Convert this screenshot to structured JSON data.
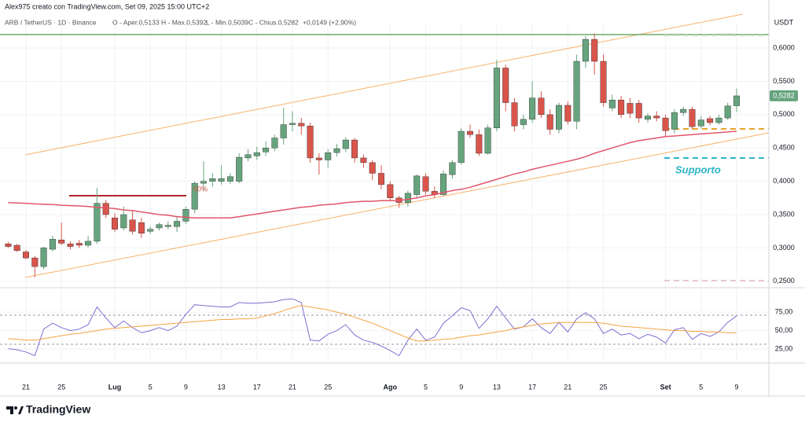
{
  "header": {
    "credit": "Alex975 creato con TradingView.com, Set 09, 2025 15:00 UTC+2",
    "symbol": "ARB / TetherUS · 1D · Binance",
    "open": "O - Aper.0,5133",
    "high": "H - Max.0,5392",
    "low": "L - Min.0,5039",
    "close": "C - Chius.0,5282",
    "change": "+0,0149 (+2,90%)"
  },
  "watermark": "TradingView",
  "chart_data": [
    {
      "type": "candlestick",
      "currency": "USDT",
      "last_price_label": "0,5282",
      "up_color": "#66a47e",
      "down_color": "#d9554b",
      "annotations": [
        "Supporto",
        "00%"
      ],
      "ylim": [
        0.2415,
        0.639
      ],
      "yticks": [
        {
          "value": 0.25,
          "label": "0,2500"
        },
        {
          "value": 0.3,
          "label": "0,3000"
        },
        {
          "value": 0.35,
          "label": "0,3500"
        },
        {
          "value": 0.4,
          "label": "0,4000"
        },
        {
          "value": 0.45,
          "label": "0,4500"
        },
        {
          "value": 0.5,
          "label": "0,5000"
        },
        {
          "value": 0.55,
          "label": "0,5500"
        },
        {
          "value": 0.6,
          "label": "0,6000"
        }
      ],
      "categories": [
        null,
        null,
        "21",
        null,
        null,
        null,
        "25",
        null,
        null,
        null,
        null,
        null,
        "Lug",
        null,
        null,
        null,
        "5",
        null,
        null,
        null,
        "9",
        null,
        null,
        null,
        "13",
        null,
        null,
        null,
        "17",
        null,
        null,
        null,
        "21",
        null,
        null,
        null,
        "25",
        null,
        null,
        null,
        null,
        null,
        null,
        "Ago",
        null,
        null,
        null,
        "5",
        null,
        null,
        null,
        "9",
        null,
        null,
        null,
        "13",
        null,
        null,
        null,
        "17",
        null,
        null,
        null,
        "21",
        null,
        null,
        null,
        "25",
        null,
        null,
        null,
        null,
        null,
        null,
        "Set",
        null,
        null,
        null,
        "5",
        null,
        null,
        null,
        "9"
      ],
      "ohlc": [
        [
          0.306,
          0.309,
          0.3,
          0.302
        ],
        [
          0.304,
          0.306,
          0.294,
          0.296
        ],
        [
          0.294,
          0.297,
          0.283,
          0.285
        ],
        [
          0.285,
          0.288,
          0.256,
          0.272
        ],
        [
          0.272,
          0.302,
          0.268,
          0.3
        ],
        [
          0.298,
          0.318,
          0.295,
          0.313
        ],
        [
          0.312,
          0.338,
          0.304,
          0.307
        ],
        [
          0.306,
          0.31,
          0.298,
          0.302
        ],
        [
          0.307,
          0.312,
          0.3,
          0.304
        ],
        [
          0.304,
          0.318,
          0.301,
          0.31
        ],
        [
          0.31,
          0.39,
          0.306,
          0.367
        ],
        [
          0.367,
          0.372,
          0.345,
          0.35
        ],
        [
          0.345,
          0.352,
          0.324,
          0.328
        ],
        [
          0.33,
          0.362,
          0.326,
          0.35
        ],
        [
          0.342,
          0.355,
          0.32,
          0.325
        ],
        [
          0.338,
          0.345,
          0.315,
          0.322
        ],
        [
          0.325,
          0.332,
          0.321,
          0.328
        ],
        [
          0.33,
          0.338,
          0.326,
          0.335
        ],
        [
          0.332,
          0.34,
          0.328,
          0.334
        ],
        [
          0.332,
          0.348,
          0.324,
          0.34
        ],
        [
          0.34,
          0.362,
          0.336,
          0.358
        ],
        [
          0.358,
          0.4,
          0.352,
          0.397
        ],
        [
          0.397,
          0.43,
          0.385,
          0.4
        ],
        [
          0.4,
          0.412,
          0.392,
          0.404
        ],
        [
          0.4,
          0.424,
          0.395,
          0.404
        ],
        [
          0.4,
          0.412,
          0.396,
          0.407
        ],
        [
          0.4,
          0.442,
          0.397,
          0.436
        ],
        [
          0.435,
          0.448,
          0.43,
          0.44
        ],
        [
          0.438,
          0.452,
          0.432,
          0.443
        ],
        [
          0.444,
          0.46,
          0.438,
          0.45
        ],
        [
          0.45,
          0.47,
          0.445,
          0.465
        ],
        [
          0.465,
          0.51,
          0.455,
          0.485
        ],
        [
          0.485,
          0.505,
          0.475,
          0.487
        ],
        [
          0.487,
          0.495,
          0.47,
          0.483
        ],
        [
          0.483,
          0.488,
          0.428,
          0.435
        ],
        [
          0.435,
          0.442,
          0.41,
          0.432
        ],
        [
          0.432,
          0.448,
          0.42,
          0.443
        ],
        [
          0.443,
          0.456,
          0.437,
          0.449
        ],
        [
          0.449,
          0.466,
          0.444,
          0.462
        ],
        [
          0.462,
          0.465,
          0.428,
          0.435
        ],
        [
          0.435,
          0.44,
          0.42,
          0.428
        ],
        [
          0.428,
          0.432,
          0.402,
          0.412
        ],
        [
          0.412,
          0.424,
          0.388,
          0.395
        ],
        [
          0.395,
          0.4,
          0.37,
          0.375
        ],
        [
          0.375,
          0.378,
          0.36,
          0.368
        ],
        [
          0.368,
          0.386,
          0.362,
          0.382
        ],
        [
          0.38,
          0.41,
          0.374,
          0.408
        ],
        [
          0.407,
          0.412,
          0.38,
          0.385
        ],
        [
          0.385,
          0.392,
          0.375,
          0.38
        ],
        [
          0.38,
          0.416,
          0.378,
          0.411
        ],
        [
          0.41,
          0.432,
          0.404,
          0.428
        ],
        [
          0.428,
          0.48,
          0.425,
          0.475
        ],
        [
          0.475,
          0.485,
          0.465,
          0.47
        ],
        [
          0.47,
          0.478,
          0.438,
          0.442
        ],
        [
          0.442,
          0.485,
          0.44,
          0.48
        ],
        [
          0.48,
          0.582,
          0.475,
          0.57
        ],
        [
          0.57,
          0.575,
          0.505,
          0.518
        ],
        [
          0.518,
          0.525,
          0.475,
          0.483
        ],
        [
          0.485,
          0.5,
          0.478,
          0.493
        ],
        [
          0.493,
          0.55,
          0.488,
          0.525
        ],
        [
          0.525,
          0.535,
          0.495,
          0.5
        ],
        [
          0.5,
          0.508,
          0.47,
          0.478
        ],
        [
          0.478,
          0.518,
          0.472,
          0.514
        ],
        [
          0.514,
          0.52,
          0.485,
          0.49
        ],
        [
          0.49,
          0.59,
          0.478,
          0.58
        ],
        [
          0.58,
          0.618,
          0.57,
          0.613
        ],
        [
          0.613,
          0.622,
          0.56,
          0.58
        ],
        [
          0.58,
          0.59,
          0.512,
          0.518
        ],
        [
          0.51,
          0.53,
          0.505,
          0.522
        ],
        [
          0.522,
          0.528,
          0.495,
          0.5
        ],
        [
          0.517,
          0.525,
          0.495,
          0.502
        ],
        [
          0.517,
          0.522,
          0.488,
          0.495
        ],
        [
          0.493,
          0.502,
          0.488,
          0.498
        ],
        [
          0.498,
          0.505,
          0.49,
          0.495
        ],
        [
          0.495,
          0.5,
          0.468,
          0.476
        ],
        [
          0.478,
          0.508,
          0.472,
          0.503
        ],
        [
          0.503,
          0.512,
          0.498,
          0.508
        ],
        [
          0.508,
          0.512,
          0.478,
          0.482
        ],
        [
          0.483,
          0.498,
          0.479,
          0.492
        ],
        [
          0.494,
          0.498,
          0.484,
          0.488
        ],
        [
          0.488,
          0.5,
          0.485,
          0.495
        ],
        [
          0.495,
          0.518,
          0.492,
          0.513
        ],
        [
          0.5133,
          0.5392,
          0.5039,
          0.5282
        ]
      ],
      "series": [
        {
          "color": "#e2566a",
          "values": [
            0.368,
            0.3675,
            0.367,
            0.366,
            0.3655,
            0.365,
            0.364,
            0.3635,
            0.363,
            0.362,
            0.361,
            0.36,
            0.359,
            0.357,
            0.356,
            0.354,
            0.352,
            0.35,
            0.349,
            0.347,
            0.346,
            0.345,
            0.345,
            0.345,
            0.345,
            0.345,
            0.347,
            0.349,
            0.351,
            0.353,
            0.355,
            0.357,
            0.359,
            0.361,
            0.362,
            0.364,
            0.365,
            0.366,
            0.368,
            0.369,
            0.37,
            0.37,
            0.371,
            0.371,
            0.371,
            0.373,
            0.375,
            0.378,
            0.38,
            0.383,
            0.386,
            0.388,
            0.391,
            0.395,
            0.399,
            0.403,
            0.407,
            0.411,
            0.414,
            0.418,
            0.421,
            0.424,
            0.427,
            0.43,
            0.433,
            0.437,
            0.442,
            0.446,
            0.45,
            0.454,
            0.458,
            0.461,
            0.463,
            0.465,
            0.467,
            0.468,
            0.469,
            0.47,
            0.471,
            0.472,
            0.473,
            0.474,
            0.475
          ]
        }
      ]
    },
    {
      "type": "line",
      "ylim": [
        8,
        106
      ],
      "yticks": [
        {
          "value": 25,
          "label": "25,00"
        },
        {
          "value": 50,
          "label": "50,00"
        },
        {
          "value": 75,
          "label": "75,00"
        }
      ],
      "series": [
        {
          "color": "#7e6fd0",
          "values": [
            25.5,
            24,
            21,
            16,
            52,
            60,
            54,
            50,
            52,
            58,
            82,
            67,
            54,
            63,
            54,
            47,
            50,
            54,
            50,
            56,
            72,
            85,
            84,
            83,
            82,
            82,
            88,
            87,
            87,
            88,
            89,
            92,
            93,
            88,
            37,
            36,
            45,
            50,
            58,
            44,
            37,
            34,
            29,
            23,
            16,
            37,
            52,
            37,
            41,
            60,
            70,
            81,
            77,
            53,
            66,
            83,
            67,
            52,
            55,
            66,
            54,
            46,
            61,
            48,
            66,
            74,
            66,
            46,
            52,
            44,
            46,
            39,
            45,
            41,
            33,
            51,
            54,
            38,
            46,
            42,
            48,
            61,
            70
          ]
        },
        {
          "color": "#f5a443",
          "values": [
            39,
            38,
            37,
            37,
            39,
            41,
            43,
            45,
            46,
            48,
            50,
            52,
            53,
            54,
            55,
            56,
            57,
            58,
            59,
            60,
            61,
            62,
            63,
            64,
            65,
            65,
            66,
            66,
            67,
            70,
            73,
            77,
            81,
            84,
            82,
            80,
            78,
            75,
            72,
            68,
            64,
            60,
            55,
            50,
            45,
            40,
            36,
            36,
            37,
            38,
            39,
            41,
            43,
            44,
            46,
            48,
            50,
            53,
            55,
            57,
            59,
            60,
            61,
            61,
            61,
            61,
            61,
            60,
            58,
            56,
            55,
            54,
            53,
            52,
            51,
            50,
            50,
            49,
            49,
            48,
            48,
            47,
            47
          ]
        }
      ]
    }
  ]
}
